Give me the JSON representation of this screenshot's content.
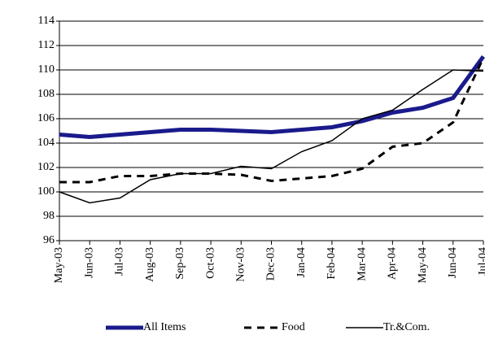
{
  "chart_data": {
    "type": "line",
    "categories": [
      "May-03",
      "Jun-03",
      "Jul-03",
      "Aug-03",
      "Sep-03",
      "Oct-03",
      "Nov-03",
      "Dec-03",
      "Jan-04",
      "Feb-04",
      "Mar-04",
      "Apr-04",
      "May-04",
      "Jun-04",
      "Jul-04"
    ],
    "series": [
      {
        "name": "All Items",
        "color": "#1a1a8c",
        "style": "thick",
        "values": [
          104.7,
          104.5,
          104.7,
          104.9,
          105.1,
          105.1,
          105.0,
          104.9,
          105.1,
          105.3,
          105.8,
          106.5,
          106.9,
          107.7,
          111.1
        ]
      },
      {
        "name": "Food",
        "color": "#000000",
        "style": "dashed",
        "values": [
          100.8,
          100.8,
          101.3,
          101.3,
          101.5,
          101.5,
          101.4,
          100.9,
          101.1,
          101.3,
          101.9,
          103.7,
          104.0,
          105.7,
          111.0
        ]
      },
      {
        "name": "Tr.&Com.",
        "color": "#000000",
        "style": "thin",
        "values": [
          100.0,
          99.1,
          99.5,
          101.0,
          101.5,
          101.5,
          102.1,
          101.9,
          103.3,
          104.2,
          106.0,
          106.7,
          108.4,
          110.0,
          109.9
        ]
      }
    ],
    "ylim": [
      96,
      114
    ],
    "yticks": [
      96,
      98,
      100,
      102,
      104,
      106,
      108,
      110,
      112,
      114
    ],
    "grid": true,
    "legend": "bottom"
  }
}
